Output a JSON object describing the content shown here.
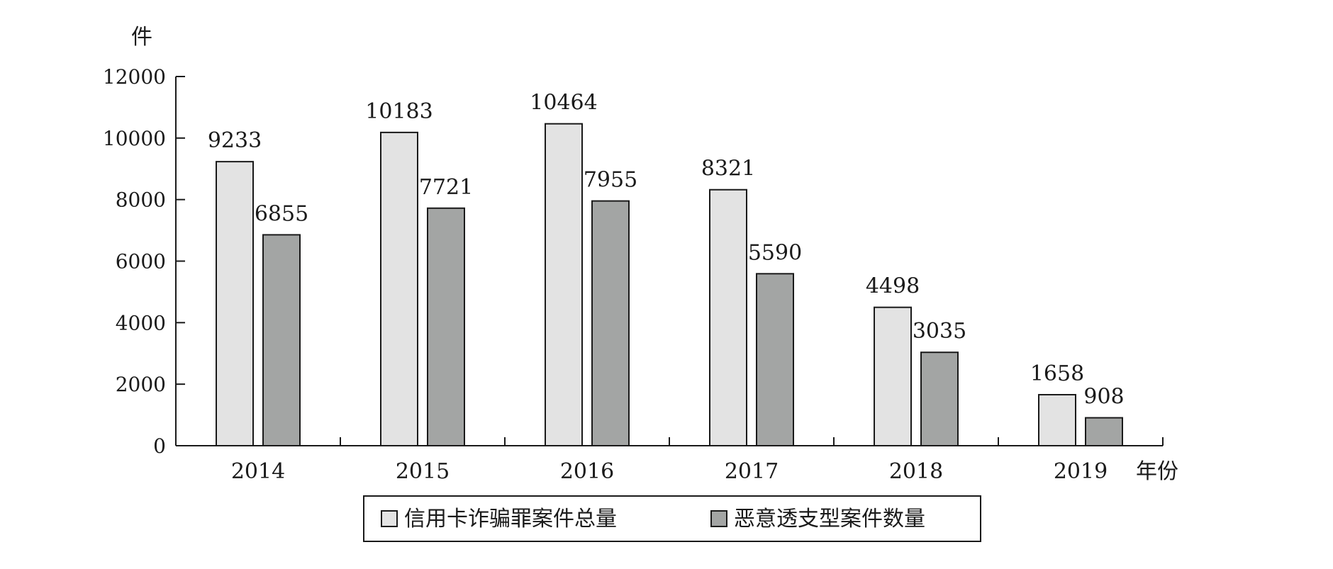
{
  "chart_data": {
    "type": "bar",
    "title": "",
    "xlabel": "年份",
    "ylabel": "件",
    "ylim": [
      0,
      12000
    ],
    "yticks": [
      0,
      2000,
      4000,
      6000,
      8000,
      10000,
      12000
    ],
    "categories": [
      "2014",
      "2015",
      "2016",
      "2017",
      "2018",
      "2019"
    ],
    "series": [
      {
        "name": "信用卡诈骗罪案件总量",
        "color": "#e3e3e3",
        "values": [
          9233,
          10183,
          10464,
          8321,
          4498,
          1658
        ]
      },
      {
        "name": "恶意透支型案件数量",
        "color": "#a3a5a4",
        "values": [
          6855,
          7721,
          7955,
          5590,
          3035,
          908
        ]
      }
    ],
    "grid": false,
    "legend_position": "bottom-center"
  }
}
